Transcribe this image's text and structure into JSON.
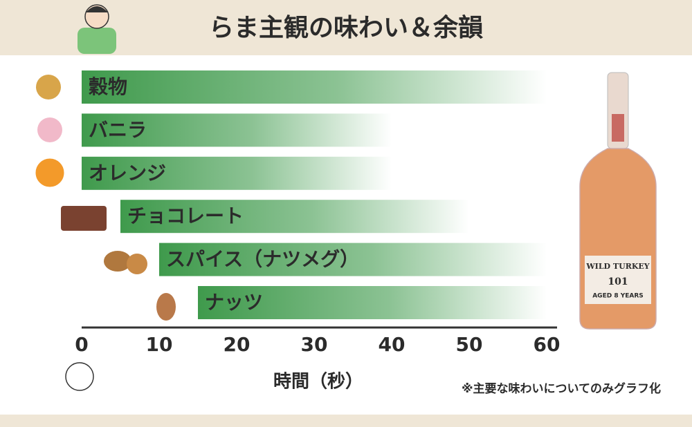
{
  "chart_data": {
    "type": "floating-bar",
    "title": "らま主観の味わい＆余韻",
    "categories": [
      "穀物",
      "バニラ",
      "オレンジ",
      "チョコレート",
      "スパイス（ナツメグ）",
      "ナッツ"
    ],
    "start": [
      0,
      0,
      0,
      5,
      10,
      15
    ],
    "end": [
      60,
      40,
      40,
      50,
      60,
      60
    ],
    "color": "#3f9a4c",
    "xlim": [
      0,
      60
    ],
    "xticks": [
      0,
      10,
      20,
      30,
      40,
      50,
      60
    ],
    "xlabel": "時間（秒）",
    "note": "※主要な味わいについてのみグラフ化"
  }
}
